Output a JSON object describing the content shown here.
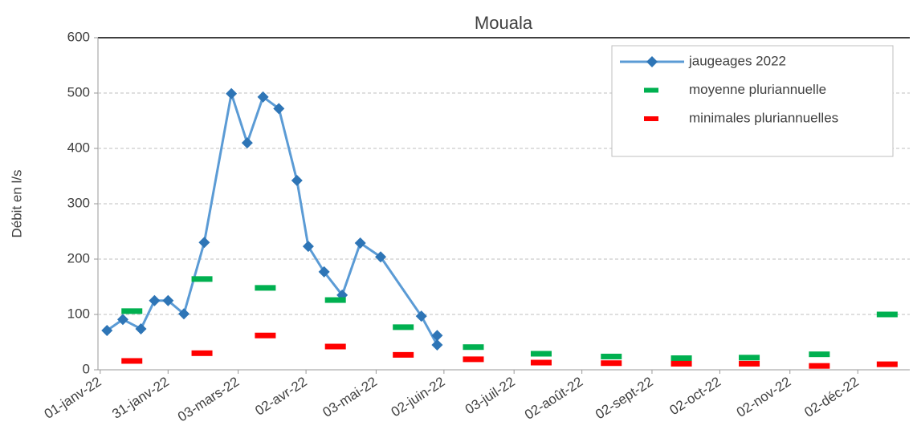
{
  "chart_data": {
    "type": "line",
    "title": "Mouala",
    "y_label": "Débit en l/s",
    "xlim": [
      "2021-12-31",
      "2022-12-25"
    ],
    "xticks": [
      {
        "value": "2022-01-01",
        "label": "01-janv-22"
      },
      {
        "value": "2022-01-31",
        "label": "31-janv-22"
      },
      {
        "value": "2022-03-03",
        "label": "03-mars-22"
      },
      {
        "value": "2022-04-02",
        "label": "02-avr-22"
      },
      {
        "value": "2022-05-03",
        "label": "03-mai-22"
      },
      {
        "value": "2022-06-02",
        "label": "02-juin-22"
      },
      {
        "value": "2022-07-03",
        "label": "03-juil-22"
      },
      {
        "value": "2022-08-02",
        "label": "02-août-22"
      },
      {
        "value": "2022-09-02",
        "label": "02-sept-22"
      },
      {
        "value": "2022-10-02",
        "label": "02-oct-22"
      },
      {
        "value": "2022-11-02",
        "label": "02-nov-22"
      },
      {
        "value": "2022-12-02",
        "label": "02-déc-22"
      }
    ],
    "ylim": [
      0,
      600
    ],
    "yticks": [
      0,
      100,
      200,
      300,
      400,
      500,
      600
    ],
    "grid": true,
    "legend": "upper right",
    "series": [
      {
        "name": "jaugeages 2022",
        "color": "#2e75b6",
        "style": "line",
        "x": [
          "2022-01-04",
          "2022-01-11",
          "2022-01-19",
          "2022-01-25",
          "2022-01-31",
          "2022-02-07",
          "2022-02-16",
          "2022-02-28",
          "2022-03-07",
          "2022-03-14",
          "2022-03-21",
          "2022-03-29",
          "2022-04-03",
          "2022-04-10",
          "2022-04-18",
          "2022-04-26",
          "2022-05-05",
          "2022-05-23",
          "2022-05-30",
          "2022-05-30"
        ],
        "values": [
          71,
          91,
          74,
          125,
          125,
          101,
          230,
          499,
          410,
          493,
          472,
          342,
          223,
          177,
          135,
          229,
          204,
          97,
          45,
          62
        ]
      },
      {
        "name": "moyenne pluriannuelle",
        "color": "#00b050",
        "style": "dash",
        "x": [
          "2022-01-15",
          "2022-02-15",
          "2022-03-15",
          "2022-04-15",
          "2022-05-15",
          "2022-06-15",
          "2022-07-15",
          "2022-08-15",
          "2022-09-15",
          "2022-10-15",
          "2022-11-15",
          "2022-12-15"
        ],
        "values": [
          106,
          164,
          148,
          126,
          77,
          41,
          29,
          24,
          21,
          22,
          28,
          100
        ]
      },
      {
        "name": "minimales pluriannuelles",
        "color": "#ff0000",
        "style": "dash",
        "x": [
          "2022-01-15",
          "2022-02-15",
          "2022-03-15",
          "2022-04-15",
          "2022-05-15",
          "2022-06-15",
          "2022-07-15",
          "2022-08-15",
          "2022-09-15",
          "2022-10-15",
          "2022-11-15",
          "2022-12-15"
        ],
        "values": [
          16,
          30,
          62,
          42,
          27,
          19,
          13,
          12,
          11,
          11,
          7,
          10
        ]
      }
    ]
  }
}
